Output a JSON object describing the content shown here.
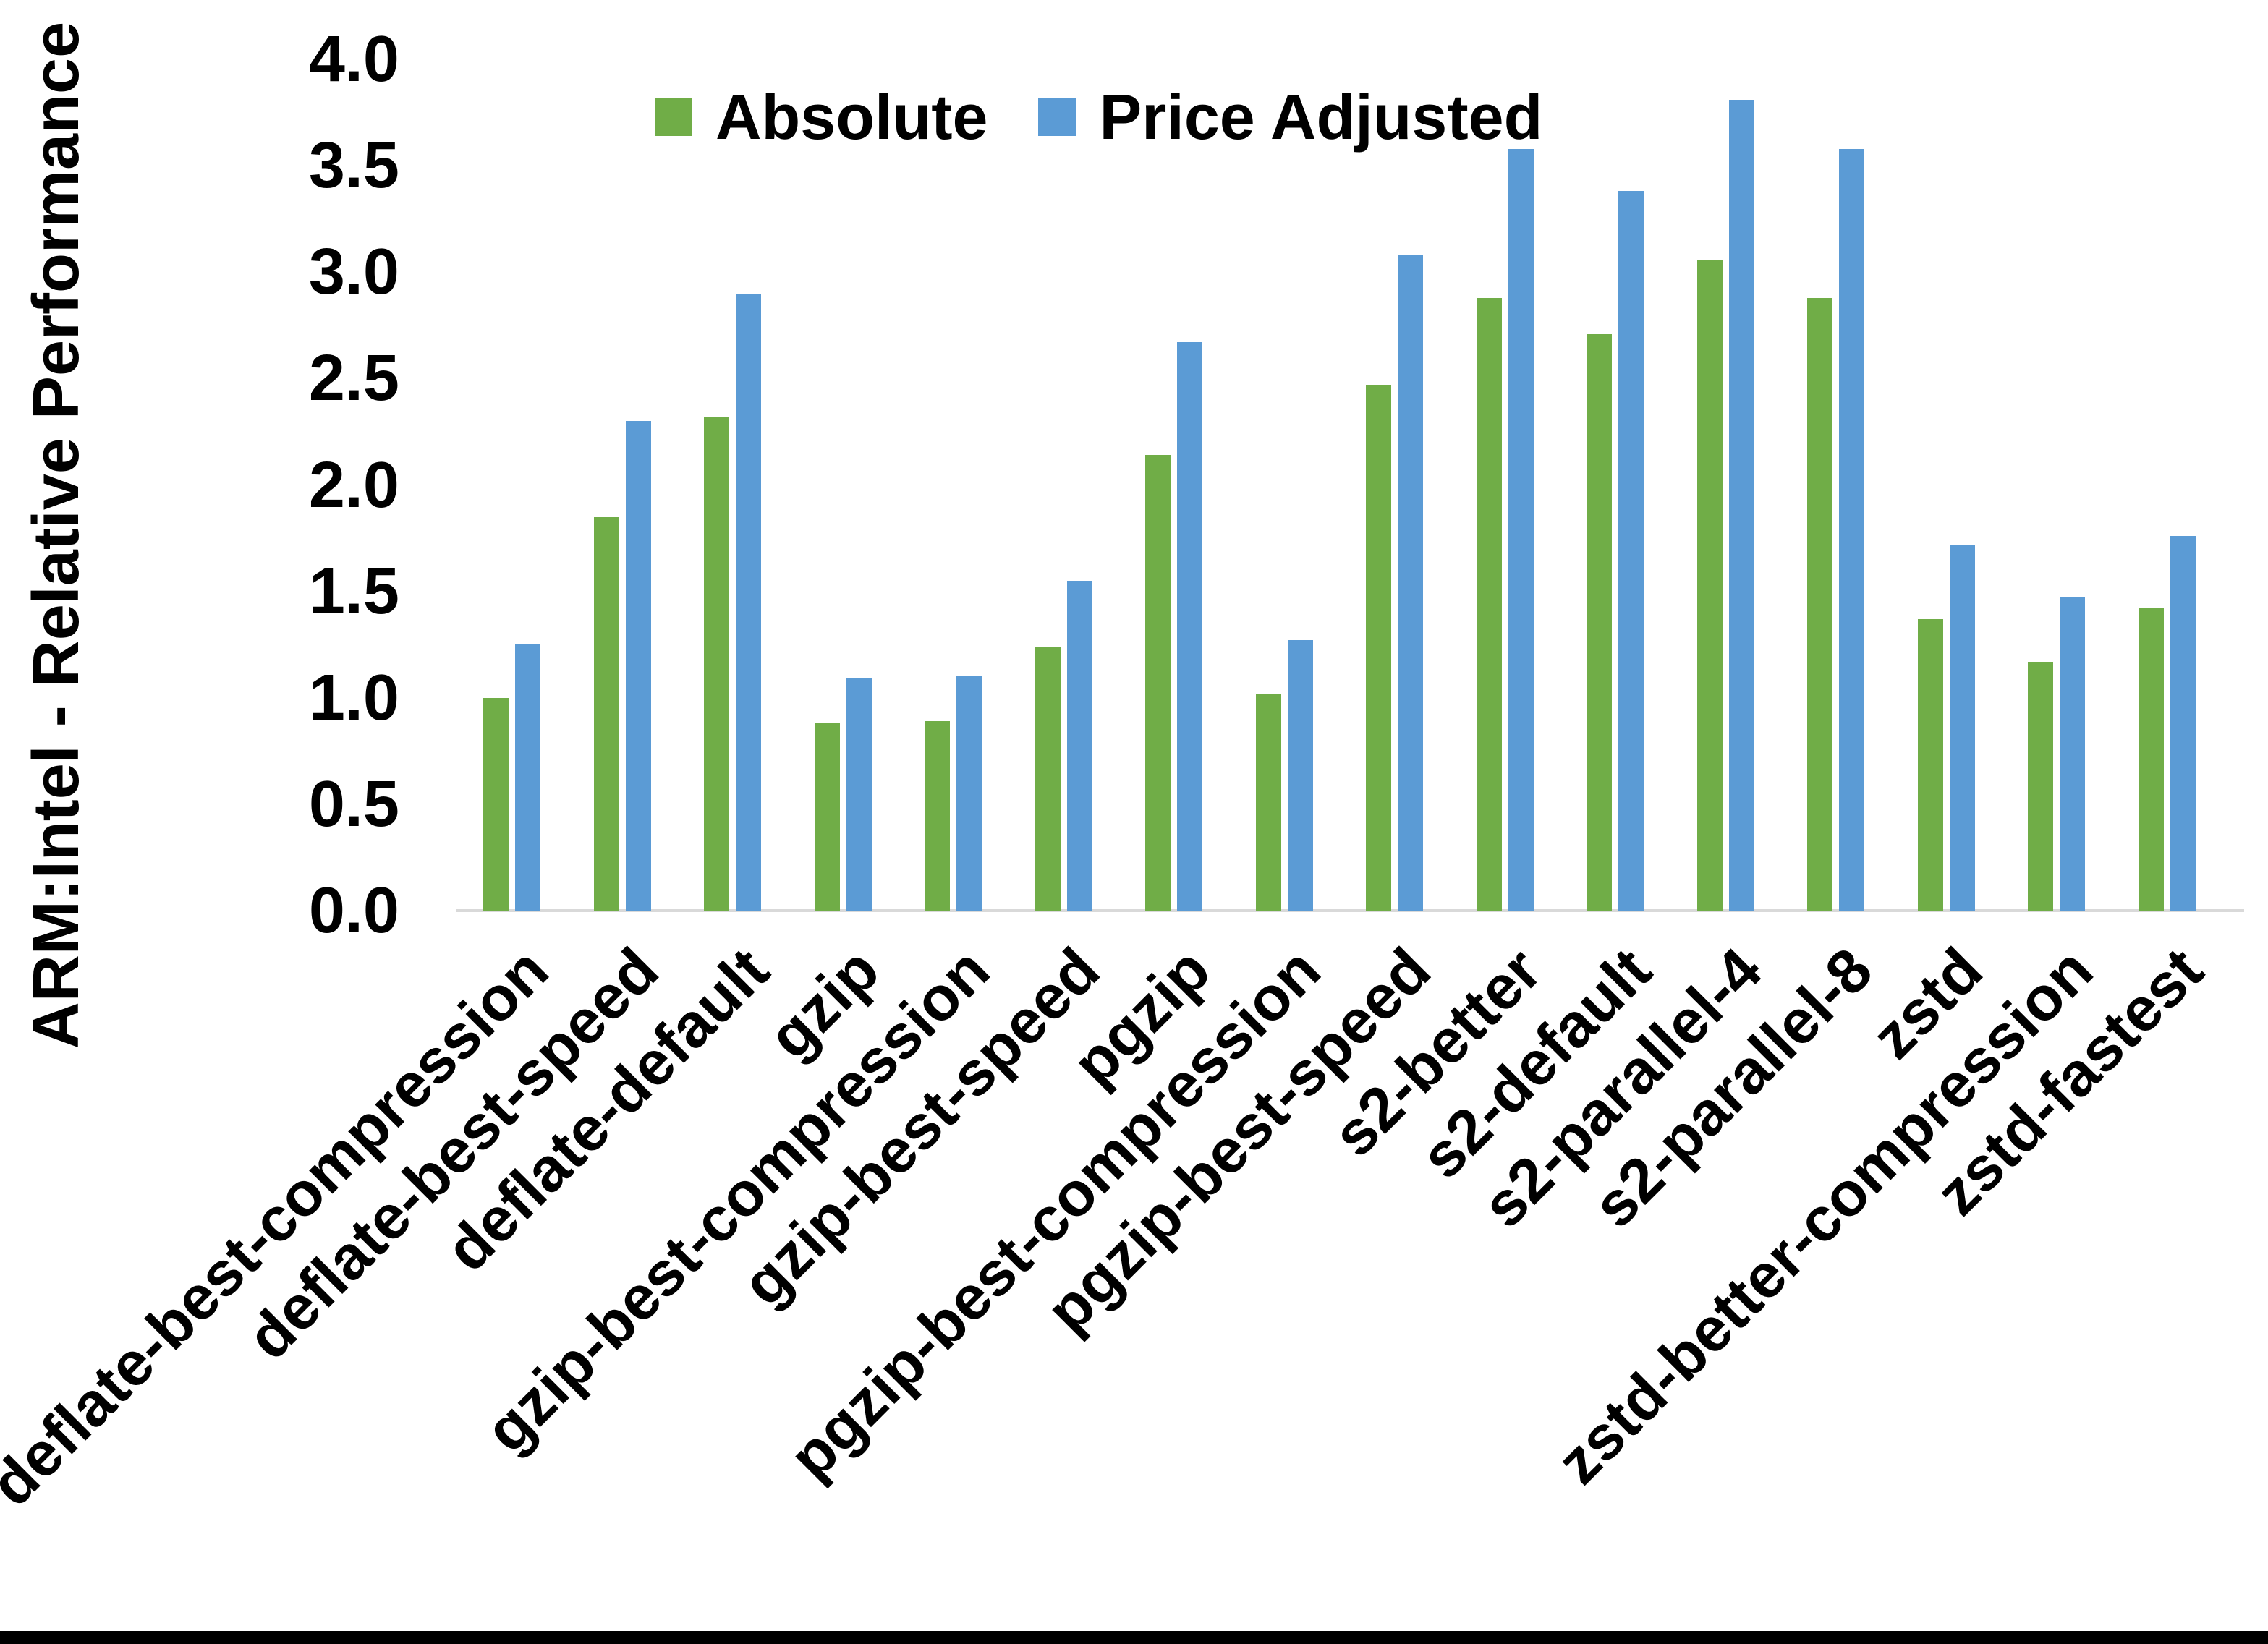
{
  "figure": {
    "background": "#ffffff",
    "bottom_bar_color": "#000000",
    "axis_line_color": "#d9d9d9"
  },
  "chart_data": {
    "type": "bar",
    "title": "",
    "xlabel": "",
    "ylabel": "ARM:Intel - Relative Performance",
    "ylim": [
      0.0,
      4.0
    ],
    "ytick_step": 0.5,
    "yticks": [
      "0.0",
      "0.5",
      "1.0",
      "1.5",
      "2.0",
      "2.5",
      "3.0",
      "3.5",
      "4.0"
    ],
    "grid": false,
    "legend_position": "top-center",
    "categories": [
      "deflate-best-compression",
      "deflate-best-speed",
      "deflate-default",
      "gzip",
      "gzip-best-compression",
      "gzip-best-speed",
      "pgzip",
      "pgzip-best-compression",
      "pgzip-best-speed",
      "s2-better",
      "s2-default",
      "s2-parallel-4",
      "s2-parallel-8",
      "zstd",
      "zstd-better-compression",
      "zstd-fastest"
    ],
    "series": [
      {
        "name": "Absolute",
        "color": "#70AD47",
        "values": [
          1.0,
          1.85,
          2.32,
          0.88,
          0.89,
          1.24,
          2.14,
          1.02,
          2.47,
          2.88,
          2.71,
          3.06,
          2.88,
          1.37,
          1.17,
          1.42
        ]
      },
      {
        "name": "Price Adjusted",
        "color": "#5B9BD5",
        "values": [
          1.25,
          2.3,
          2.9,
          1.09,
          1.1,
          1.55,
          2.67,
          1.27,
          3.08,
          3.58,
          3.38,
          3.81,
          3.58,
          1.72,
          1.47,
          1.76
        ]
      }
    ]
  }
}
